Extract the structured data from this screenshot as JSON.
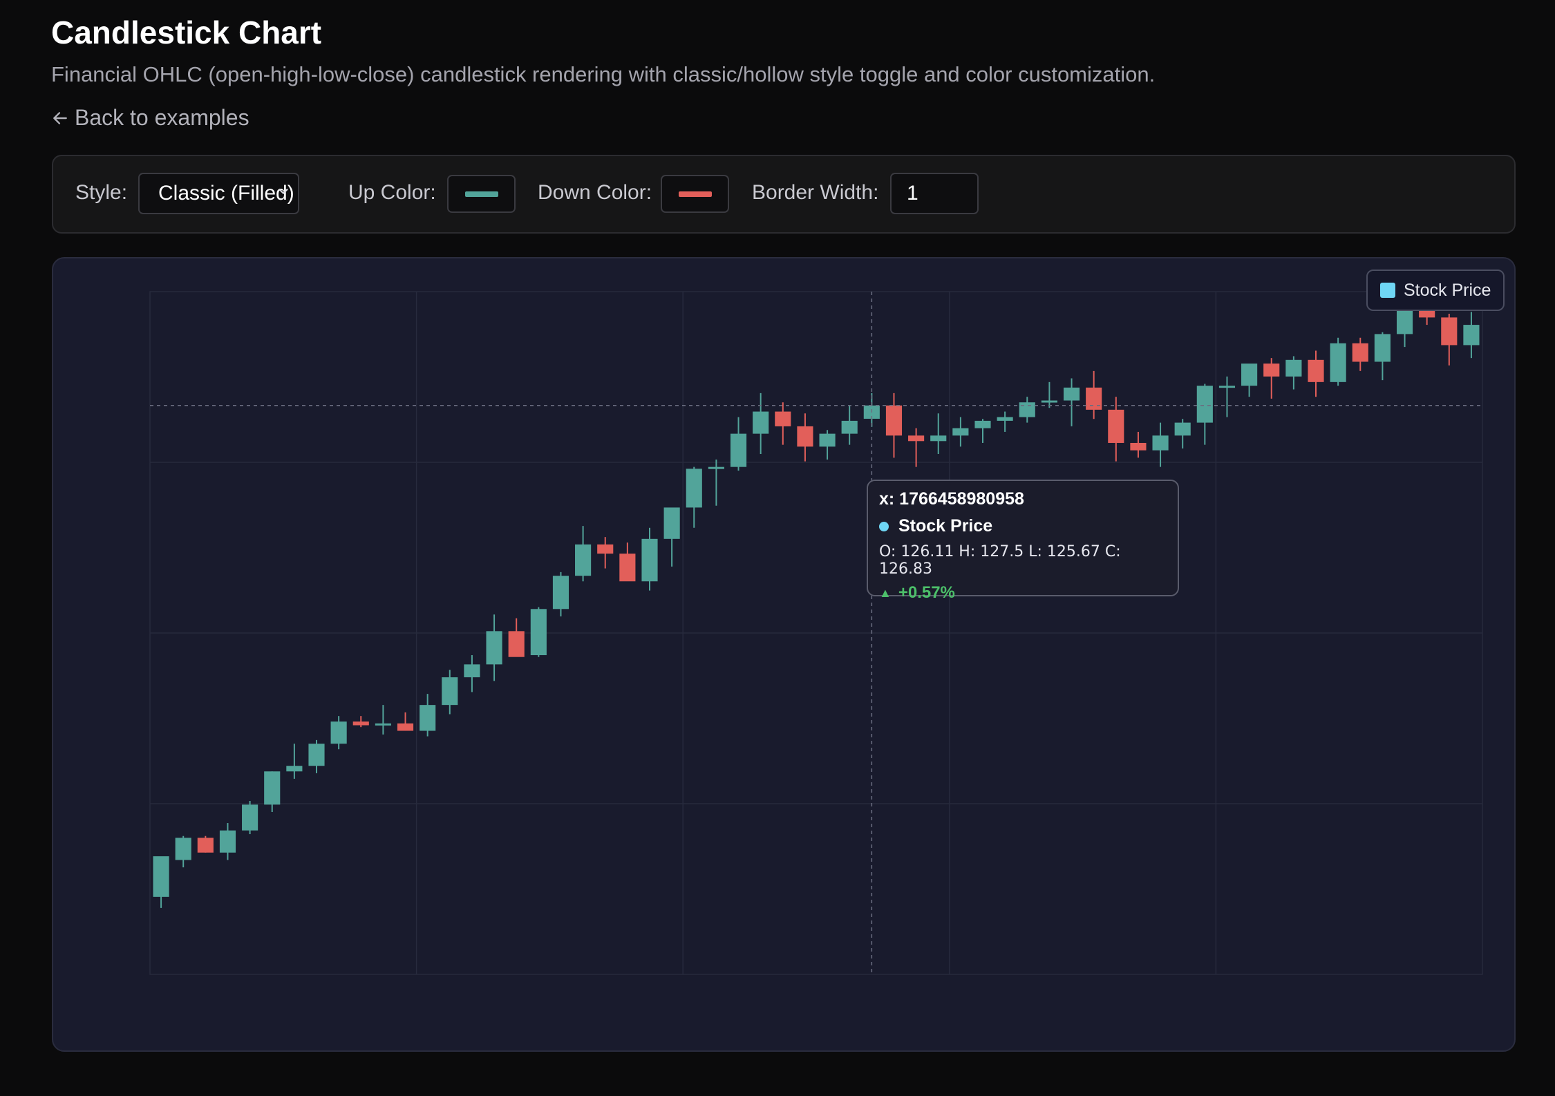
{
  "header": {
    "title": "Candlestick Chart",
    "description": "Financial OHLC (open-high-low-close) candlestick rendering with classic/hollow style toggle and color customization.",
    "back_link": "Back to examples"
  },
  "controls": {
    "style_label": "Style:",
    "style_value": "Classic (Filled)",
    "up_color_label": "Up Color:",
    "up_color": "#52a49a",
    "down_color_label": "Down Color:",
    "down_color": "#e25f5a",
    "border_width_label": "Border Width:",
    "border_width": "1"
  },
  "legend": {
    "label": "Stock Price",
    "color": "#6fd6f4"
  },
  "tooltip": {
    "x": "x: 1766458980958",
    "series": "Stock Price",
    "ohlc": "O: 126.11 H: 127.5 L: 125.67 C: 126.83",
    "change": "+0.57%",
    "change_color": "#4cc06a"
  },
  "chart_data": {
    "type": "candlestick",
    "series_name": "Stock Price",
    "up_color": "#52a49a",
    "down_color": "#e25f5a",
    "grid": true,
    "legend": "top-right",
    "y_axis_labels_visible": false,
    "x_axis_labels_visible": false,
    "ylim": [
      96,
      133
    ],
    "candles": [
      [
        100.2,
        102.2,
        99.6,
        102.4
      ],
      [
        102.2,
        103.5,
        101.8,
        103.4
      ],
      [
        103.4,
        103.5,
        102.6,
        102.6
      ],
      [
        102.6,
        104.2,
        102.2,
        103.8
      ],
      [
        103.8,
        105.4,
        103.6,
        105.2
      ],
      [
        105.2,
        107.0,
        104.8,
        107.0
      ],
      [
        107.0,
        108.5,
        106.6,
        107.3
      ],
      [
        107.3,
        108.7,
        106.9,
        108.5
      ],
      [
        108.5,
        110.0,
        108.2,
        109.7
      ],
      [
        109.7,
        110.0,
        109.4,
        109.5
      ],
      [
        109.5,
        110.6,
        109.0,
        109.6
      ],
      [
        109.6,
        110.2,
        109.2,
        109.2
      ],
      [
        109.2,
        111.2,
        108.9,
        110.6
      ],
      [
        110.6,
        112.5,
        110.1,
        112.1
      ],
      [
        112.1,
        113.3,
        111.3,
        112.8
      ],
      [
        112.8,
        115.5,
        111.9,
        114.6
      ],
      [
        114.6,
        115.3,
        113.3,
        113.2
      ],
      [
        113.3,
        115.9,
        113.2,
        115.8
      ],
      [
        115.8,
        117.8,
        115.4,
        117.6
      ],
      [
        117.6,
        120.3,
        117.3,
        119.3
      ],
      [
        119.3,
        119.7,
        118.0,
        118.8
      ],
      [
        118.8,
        119.4,
        117.4,
        117.3
      ],
      [
        117.3,
        120.2,
        116.8,
        119.6
      ],
      [
        119.6,
        121.2,
        118.1,
        121.3
      ],
      [
        121.3,
        123.5,
        120.2,
        123.4
      ],
      [
        123.4,
        123.9,
        121.4,
        123.5
      ],
      [
        123.5,
        126.2,
        123.3,
        125.3
      ],
      [
        125.3,
        127.5,
        124.2,
        126.5
      ],
      [
        126.5,
        127.0,
        124.7,
        125.7
      ],
      [
        125.7,
        126.4,
        123.8,
        124.6
      ],
      [
        124.6,
        125.5,
        123.9,
        125.3
      ],
      [
        125.3,
        126.8,
        124.7,
        126.0
      ],
      [
        126.11,
        127.5,
        125.67,
        126.83
      ],
      [
        126.83,
        127.5,
        124.0,
        125.2
      ],
      [
        125.2,
        125.6,
        123.5,
        124.9
      ],
      [
        124.9,
        126.4,
        124.2,
        125.2
      ],
      [
        125.2,
        126.2,
        124.6,
        125.6
      ],
      [
        125.6,
        126.1,
        124.8,
        126.0
      ],
      [
        126.0,
        126.5,
        125.4,
        126.2
      ],
      [
        126.2,
        127.3,
        125.9,
        127.0
      ],
      [
        127.0,
        128.1,
        126.7,
        127.1
      ],
      [
        127.1,
        128.3,
        125.7,
        127.8
      ],
      [
        127.8,
        128.7,
        126.1,
        126.6
      ],
      [
        126.6,
        127.3,
        123.8,
        124.8
      ],
      [
        124.8,
        125.4,
        124.0,
        124.4
      ],
      [
        124.4,
        125.9,
        123.5,
        125.2
      ],
      [
        125.2,
        126.1,
        124.5,
        125.9
      ],
      [
        125.9,
        128.0,
        124.7,
        127.9
      ],
      [
        127.9,
        128.4,
        126.2,
        127.9
      ],
      [
        127.9,
        129.0,
        127.3,
        129.1
      ],
      [
        129.1,
        129.4,
        127.2,
        128.4
      ],
      [
        128.4,
        129.5,
        127.7,
        129.3
      ],
      [
        129.3,
        129.8,
        127.3,
        128.1
      ],
      [
        128.1,
        130.5,
        127.9,
        130.2
      ],
      [
        130.2,
        130.5,
        128.7,
        129.2
      ],
      [
        129.2,
        130.8,
        128.2,
        130.7
      ],
      [
        130.7,
        132.2,
        130.0,
        132.2
      ],
      [
        132.2,
        132.6,
        131.2,
        131.6
      ],
      [
        131.6,
        131.8,
        129.0,
        130.1
      ],
      [
        130.1,
        131.9,
        129.4,
        131.2
      ]
    ],
    "crosshair_index": 32,
    "crosshair_price": 126.83
  }
}
